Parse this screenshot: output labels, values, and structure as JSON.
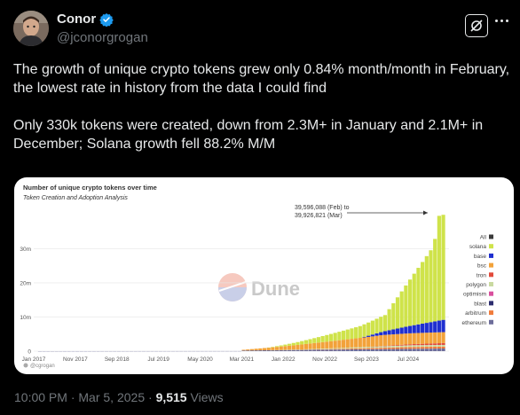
{
  "author": {
    "name": "Conor",
    "handle": "@jconorgrogan",
    "verified": true
  },
  "tweet": {
    "paragraph1": "The growth of unique crypto tokens grew only 0.84% month/month in February, the lowest rate in history from the data I could find",
    "paragraph2": "Only 330k tokens were created, down from 2.3M+  in January and 2.1M+ in December; Solana growth fell 88.2% M/M"
  },
  "footer": {
    "time": "10:00 PM",
    "sep1": " · ",
    "date": "Mar 5, 2025",
    "sep2": " · ",
    "views": "9,515",
    "views_label": " Views"
  },
  "chart_data": {
    "type": "bar",
    "title": "Number of unique crypto tokens over time",
    "subtitle": "Token Creation and Adoption Analysis",
    "annotation_line1": "39,596,088 (Feb) to",
    "annotation_line2": "39,926,821 (Mar)",
    "watermark": "Dune",
    "credit": "@cgrogan",
    "y_ticks": [
      "0",
      "10m",
      "20m",
      "30m"
    ],
    "y_tick_values": [
      0,
      10,
      20,
      30
    ],
    "ylim": [
      0,
      41
    ],
    "x_ticks": [
      "Jan 2017",
      "Nov 2017",
      "Sep 2018",
      "Jul 2019",
      "May 2020",
      "Mar 2021",
      "Jan 2022",
      "Nov 2022",
      "Sep 2023",
      "Jul 2024"
    ],
    "x_tick_months": [
      0,
      10,
      20,
      30,
      40,
      50,
      60,
      70,
      80,
      90
    ],
    "n_months": 99,
    "legend": [
      "All",
      "solana",
      "base",
      "bsc",
      "tron",
      "polygon",
      "optimism",
      "blast",
      "arbitrum",
      "ethereum"
    ],
    "colors": {
      "All": "#3a3a3a",
      "solana": "#cfe34a",
      "base": "#1f2fd0",
      "bsc": "#f2a23a",
      "tron": "#e24b3b",
      "polygon": "#c9d9a0",
      "optimism": "#d9509e",
      "blast": "#2d2d6e",
      "arbitrum": "#f07c3c",
      "ethereum": "#6d6d9a"
    },
    "series_total_millions_sample": {
      "Mar 2021": 0.3,
      "Jan 2022": 2.0,
      "Nov 2022": 3.2,
      "Sep 2023": 7.0,
      "Jul 2024": 21.0,
      "Feb 2025": 39.6,
      "Mar 2025": 39.9
    }
  }
}
